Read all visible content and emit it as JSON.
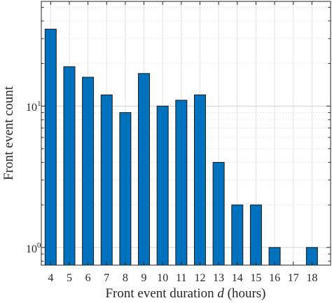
{
  "chart_data": {
    "type": "bar",
    "categories": [
      "4",
      "5",
      "6",
      "7",
      "8",
      "9",
      "10",
      "11",
      "12",
      "13",
      "14",
      "15",
      "16",
      "17",
      "18"
    ],
    "values": [
      35,
      19,
      16,
      12,
      9,
      17,
      10,
      11,
      12,
      4,
      2,
      2,
      1,
      0,
      1
    ],
    "xlabel": "Front event duration d (hours)",
    "xlabel_parts": {
      "before": "Front event duration ",
      "variable": "d",
      "after": " (hours)"
    },
    "ylabel": "Front event count",
    "yscale": "log",
    "ylim": [
      0.75,
      55
    ],
    "yticks": [
      {
        "value": 1,
        "label_base": "10",
        "label_exp": "0"
      },
      {
        "value": 10,
        "label_base": "10",
        "label_exp": "1"
      }
    ],
    "grid": true,
    "legend": "none",
    "bar_color": "#0072BD",
    "bar_edge_color": "#1a1a1a"
  }
}
